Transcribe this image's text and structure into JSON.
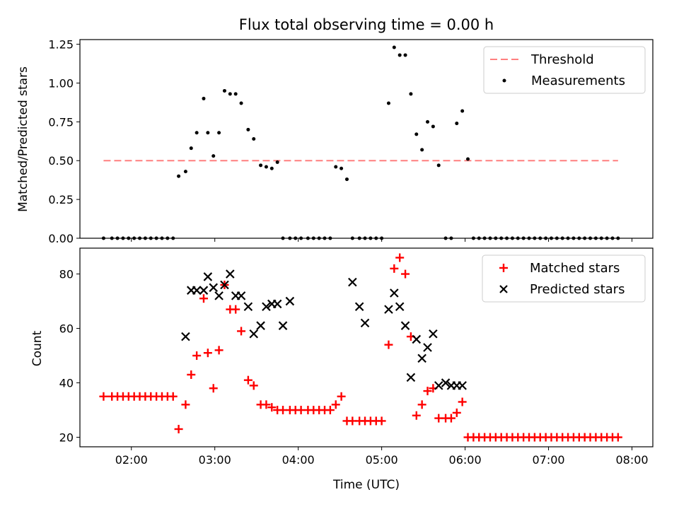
{
  "figure": {
    "title": "Flux total observing time = 0.00 h"
  },
  "chart_data": [
    {
      "type": "scatter",
      "ylabel": "Matched/Predicted stars",
      "xlabel": "",
      "ylim": [
        0,
        1.28
      ],
      "xlim": [
        "01:23",
        "08:15"
      ],
      "yticks": [
        0.0,
        0.25,
        0.5,
        0.75,
        1.0,
        1.25
      ],
      "ytick_labels": [
        "0.00",
        "0.25",
        "0.50",
        "0.75",
        "1.00",
        "1.25"
      ],
      "xticks": [
        "02:00",
        "03:00",
        "04:00",
        "05:00",
        "06:00",
        "07:00",
        "08:00"
      ],
      "legend": {
        "placement": "top-right",
        "entries": [
          "Threshold",
          "Measurements"
        ]
      },
      "threshold": {
        "name": "Threshold",
        "value": 0.5,
        "x_start": "01:40",
        "x_end": "07:50",
        "color": "#ff7f7f"
      },
      "series": [
        {
          "name": "Measurements",
          "color": "#000000",
          "x": [
            "01:40",
            "01:46",
            "01:50",
            "01:54",
            "01:58",
            "02:02",
            "02:06",
            "02:10",
            "02:14",
            "02:18",
            "02:22",
            "02:26",
            "02:30",
            "02:34",
            "02:39",
            "02:43",
            "02:47",
            "02:52",
            "02:55",
            "02:59",
            "03:03",
            "03:07",
            "03:11",
            "03:15",
            "03:19",
            "03:24",
            "03:28",
            "03:33",
            "03:37",
            "03:41",
            "03:45",
            "03:49",
            "03:54",
            "03:58",
            "04:02",
            "04:07",
            "04:11",
            "04:15",
            "04:19",
            "04:23",
            "04:27",
            "04:31",
            "04:35",
            "04:39",
            "04:44",
            "04:48",
            "04:52",
            "04:56",
            "05:00",
            "05:05",
            "05:09",
            "05:13",
            "05:17",
            "05:21",
            "05:25",
            "05:29",
            "05:33",
            "05:37",
            "05:41",
            "05:46",
            "05:50",
            "05:54",
            "05:58",
            "06:02",
            "06:06",
            "06:10",
            "06:14",
            "06:18",
            "06:22",
            "06:26",
            "06:30",
            "06:34",
            "06:38",
            "06:42",
            "06:46",
            "06:50",
            "06:54",
            "06:58",
            "07:02",
            "07:06",
            "07:10",
            "07:14",
            "07:18",
            "07:22",
            "07:26",
            "07:30",
            "07:34",
            "07:38",
            "07:42",
            "07:46",
            "07:50"
          ],
          "y": [
            0.0,
            0.0,
            0.0,
            0.0,
            0.0,
            0.0,
            0.0,
            0.0,
            0.0,
            0.0,
            0.0,
            0.0,
            0.0,
            0.4,
            0.43,
            0.58,
            0.68,
            0.9,
            0.68,
            0.53,
            0.68,
            0.95,
            0.93,
            0.93,
            0.87,
            0.7,
            0.64,
            0.47,
            0.46,
            0.45,
            0.49,
            0.0,
            0.0,
            0.0,
            0.0,
            0.0,
            0.0,
            0.0,
            0.0,
            0.0,
            0.46,
            0.45,
            0.38,
            0.0,
            0.0,
            0.0,
            0.0,
            0.0,
            0.0,
            0.87,
            1.23,
            1.18,
            1.18,
            0.93,
            0.67,
            0.57,
            0.75,
            0.72,
            0.47,
            0.0,
            0.0,
            0.74,
            0.82,
            0.51,
            0.0,
            0.0,
            0.0,
            0.0,
            0.0,
            0.0,
            0.0,
            0.0,
            0.0,
            0.0,
            0.0,
            0.0,
            0.0,
            0.0,
            0.0,
            0.0,
            0.0,
            0.0,
            0.0,
            0.0,
            0.0,
            0.0,
            0.0,
            0.0,
            0.0,
            0.0,
            0.0
          ]
        }
      ]
    },
    {
      "type": "scatter",
      "ylabel": "Count",
      "xlabel": "Time (UTC)",
      "ylim": [
        16.5,
        89.5
      ],
      "xlim": [
        "01:23",
        "08:15"
      ],
      "yticks": [
        20,
        40,
        60,
        80
      ],
      "ytick_labels": [
        "20",
        "40",
        "60",
        "80"
      ],
      "xticks": [
        "02:00",
        "03:00",
        "04:00",
        "05:00",
        "06:00",
        "07:00",
        "08:00"
      ],
      "legend": {
        "placement": "top-right",
        "entries": [
          "Matched stars",
          "Predicted stars"
        ]
      },
      "series": [
        {
          "name": "Matched stars",
          "marker": "plus",
          "color": "#ff0000",
          "x": [
            "01:40",
            "01:46",
            "01:50",
            "01:54",
            "01:58",
            "02:02",
            "02:06",
            "02:10",
            "02:14",
            "02:18",
            "02:22",
            "02:26",
            "02:30",
            "02:34",
            "02:39",
            "02:43",
            "02:47",
            "02:52",
            "02:55",
            "02:59",
            "03:03",
            "03:07",
            "03:11",
            "03:15",
            "03:19",
            "03:24",
            "03:28",
            "03:33",
            "03:37",
            "03:41",
            "03:45",
            "03:49",
            "03:54",
            "03:58",
            "04:02",
            "04:07",
            "04:11",
            "04:15",
            "04:19",
            "04:23",
            "04:27",
            "04:31",
            "04:35",
            "04:39",
            "04:44",
            "04:48",
            "04:52",
            "04:56",
            "05:00",
            "05:05",
            "05:09",
            "05:13",
            "05:17",
            "05:21",
            "05:25",
            "05:29",
            "05:33",
            "05:37",
            "05:41",
            "05:46",
            "05:50",
            "05:54",
            "05:58",
            "06:02",
            "06:06",
            "06:10",
            "06:14",
            "06:18",
            "06:22",
            "06:26",
            "06:30",
            "06:34",
            "06:38",
            "06:42",
            "06:46",
            "06:50",
            "06:54",
            "06:58",
            "07:02",
            "07:06",
            "07:10",
            "07:14",
            "07:18",
            "07:22",
            "07:26",
            "07:30",
            "07:34",
            "07:38",
            "07:42",
            "07:46",
            "07:50"
          ],
          "y": [
            35,
            35,
            35,
            35,
            35,
            35,
            35,
            35,
            35,
            35,
            35,
            35,
            35,
            23,
            32,
            43,
            50,
            71,
            51,
            38,
            52,
            76,
            67,
            67,
            59,
            41,
            39,
            32,
            32,
            31,
            30,
            30,
            30,
            30,
            30,
            30,
            30,
            30,
            30,
            30,
            32,
            35,
            26,
            26,
            26,
            26,
            26,
            26,
            26,
            54,
            82,
            86,
            80,
            57,
            28,
            32,
            37,
            38,
            27,
            27,
            27,
            29,
            33,
            20,
            20,
            20,
            20,
            20,
            20,
            20,
            20,
            20,
            20,
            20,
            20,
            20,
            20,
            20,
            20,
            20,
            20,
            20,
            20,
            20,
            20,
            20,
            20,
            20,
            20,
            20,
            20
          ]
        },
        {
          "name": "Predicted stars",
          "marker": "x",
          "color": "#000000",
          "x": [
            "02:39",
            "02:43",
            "02:47",
            "02:52",
            "02:55",
            "02:59",
            "03:03",
            "03:07",
            "03:11",
            "03:15",
            "03:19",
            "03:24",
            "03:28",
            "03:33",
            "03:37",
            "03:41",
            "03:45",
            "03:49",
            "03:54",
            "04:39",
            "04:44",
            "04:48",
            "05:05",
            "05:09",
            "05:13",
            "05:17",
            "05:21",
            "05:25",
            "05:29",
            "05:33",
            "05:37",
            "05:41",
            "05:46",
            "05:50",
            "05:54",
            "05:58"
          ],
          "y": [
            57,
            74,
            74,
            74,
            79,
            75,
            72,
            76,
            80,
            72,
            72,
            68,
            58,
            61,
            68,
            69,
            69,
            61,
            70,
            77,
            68,
            62,
            67,
            73,
            68,
            61,
            42,
            56,
            49,
            53,
            58,
            39,
            40,
            39,
            39,
            39
          ]
        }
      ]
    }
  ]
}
